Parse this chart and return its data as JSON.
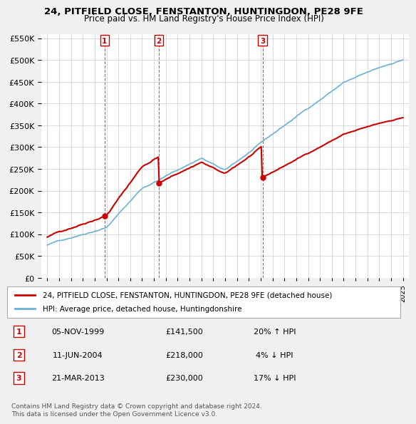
{
  "title1": "24, PITFIELD CLOSE, FENSTANTON, HUNTINGDON, PE28 9FE",
  "title2": "Price paid vs. HM Land Registry's House Price Index (HPI)",
  "ylabel_ticks": [
    "£0",
    "£50K",
    "£100K",
    "£150K",
    "£200K",
    "£250K",
    "£300K",
    "£350K",
    "£400K",
    "£450K",
    "£500K",
    "£550K"
  ],
  "ytick_values": [
    0,
    50000,
    100000,
    150000,
    200000,
    250000,
    300000,
    350000,
    400000,
    450000,
    500000,
    550000
  ],
  "hpi_color": "#6ab0d4",
  "price_color": "#cc0000",
  "marker_color": "#cc0000",
  "sale_points": [
    {
      "date_idx": 4.83,
      "price": 141500,
      "label": "1"
    },
    {
      "date_idx": 9.45,
      "price": 218000,
      "label": "2"
    },
    {
      "date_idx": 18.21,
      "price": 230000,
      "label": "3"
    }
  ],
  "legend_entries": [
    {
      "color": "#cc0000",
      "text": "24, PITFIELD CLOSE, FENSTANTON, HUNTINGDON, PE28 9FE (detached house)"
    },
    {
      "color": "#6ab0d4",
      "text": "HPI: Average price, detached house, Huntingdonshire"
    }
  ],
  "table_rows": [
    {
      "num": "1",
      "date": "05-NOV-1999",
      "price": "£141,500",
      "change": "20% ↑ HPI"
    },
    {
      "num": "2",
      "date": "11-JUN-2004",
      "price": "£218,000",
      "change": "4% ↓ HPI"
    },
    {
      "num": "3",
      "date": "21-MAR-2013",
      "price": "£230,000",
      "change": "17% ↓ HPI"
    }
  ],
  "footer": "Contains HM Land Registry data © Crown copyright and database right 2024.\nThis data is licensed under the Open Government Licence v3.0.",
  "bg_color": "#f0f0f0",
  "plot_bg_color": "#ffffff",
  "grid_color": "#cccccc"
}
